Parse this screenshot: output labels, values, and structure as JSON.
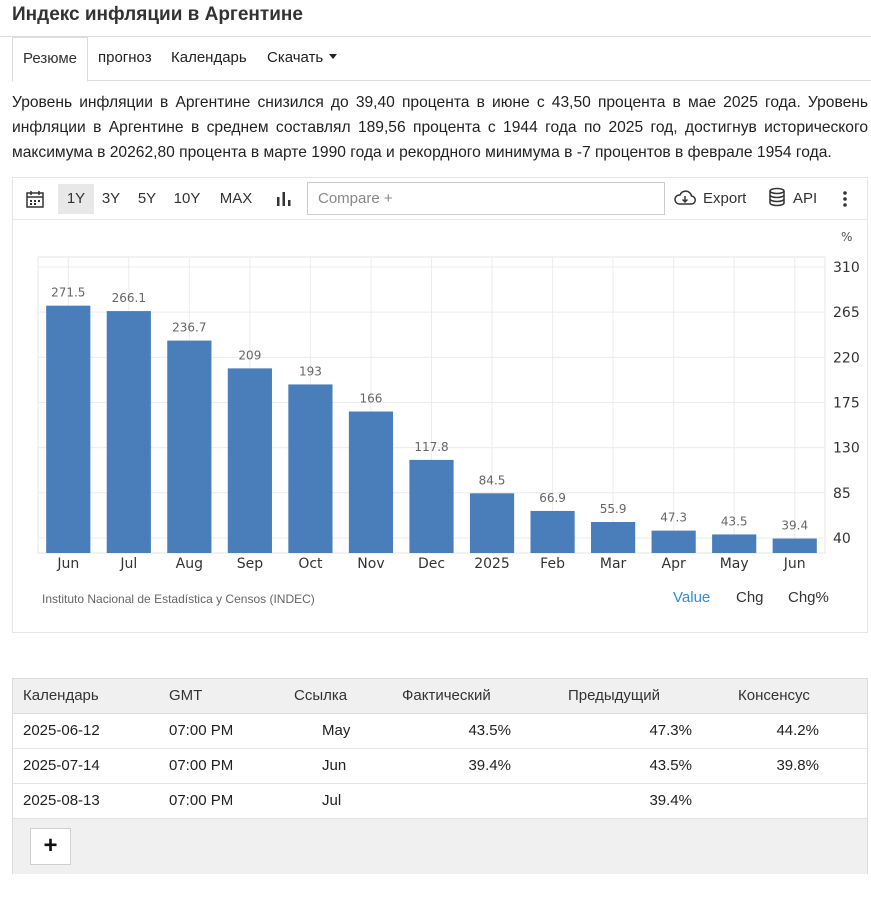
{
  "page": {
    "title": "Индекс инфляции в Аргентине",
    "description": "Уровень инфляции в Аргентине снизился до 39,40 процента в июне с 43,50 процента в мае 2025 года. Уровень инфляции в Аргентине в среднем составлял 189,56 процента с 1944 года по 2025 год, достигнув исторического максимума в 20262,80 процента в марте 1990 года и рекордного минимума в -7 процентов в феврале 1954 года."
  },
  "tabs": [
    {
      "label": "Резюме",
      "active": true
    },
    {
      "label": "прогноз",
      "active": false
    },
    {
      "label": "Календарь",
      "active": false
    },
    {
      "label": "Скачать",
      "active": false
    }
  ],
  "toolbar": {
    "ranges": [
      "1Y",
      "3Y",
      "5Y",
      "10Y",
      "MAX"
    ],
    "selected_range": "1Y",
    "compare_placeholder": "Compare +",
    "export_label": "Export",
    "api_label": "API"
  },
  "chart_data": {
    "type": "bar",
    "categories": [
      "Jun",
      "Jul",
      "Aug",
      "Sep",
      "Oct",
      "Nov",
      "Dec",
      "2025",
      "Feb",
      "Mar",
      "Apr",
      "May",
      "Jun"
    ],
    "values": [
      271.5,
      266.1,
      236.7,
      209,
      193,
      166,
      117.8,
      84.5,
      66.9,
      55.9,
      47.3,
      43.5,
      39.4
    ],
    "value_labels": [
      "271.5",
      "266.1",
      "236.7",
      "209",
      "193",
      "166",
      "117.8",
      "84.5",
      "66.9",
      "55.9",
      "47.3",
      "43.5",
      "39.4"
    ],
    "y_ticks": [
      40,
      85,
      130,
      175,
      220,
      265,
      310
    ],
    "ylim": [
      25,
      320
    ],
    "unit_label": "%",
    "bar_color": "#4a7ebb",
    "grid": true,
    "source": "Instituto Nacional de Estadística y Censos (INDEC)"
  },
  "chart_modes": [
    "Value",
    "Chg",
    "Chg%"
  ],
  "active_mode": "Value",
  "accent_color": "#2e8fd9",
  "calendar": {
    "headers": [
      "Календарь",
      "GMT",
      "Ссылка",
      "Фактический",
      "Предыдущий",
      "Консенсус"
    ],
    "rows": [
      [
        "2025-06-12",
        "07:00 PM",
        "May",
        "43.5%",
        "47.3%",
        "44.2%"
      ],
      [
        "2025-07-14",
        "07:00 PM",
        "Jun",
        "39.4%",
        "43.5%",
        "39.8%"
      ],
      [
        "2025-08-13",
        "07:00 PM",
        "Jul",
        "",
        "39.4%",
        ""
      ]
    ],
    "add_label": "+"
  }
}
